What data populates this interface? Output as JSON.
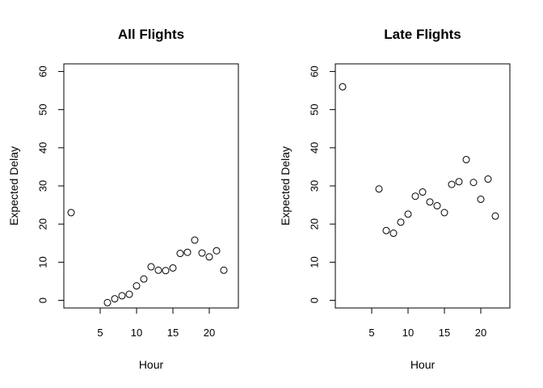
{
  "chart_data": [
    {
      "type": "scatter",
      "title": "All Flights",
      "xlabel": "Hour",
      "ylabel": "Expected Delay",
      "xlim": [
        0,
        24
      ],
      "ylim": [
        -2,
        62
      ],
      "x_ticks": [
        5,
        10,
        15,
        20
      ],
      "y_ticks": [
        0,
        10,
        20,
        30,
        40,
        50,
        60
      ],
      "grid": false,
      "points": [
        {
          "x": 1,
          "y": 23.0
        },
        {
          "x": 6,
          "y": -0.6
        },
        {
          "x": 7,
          "y": 0.4
        },
        {
          "x": 8,
          "y": 1.2
        },
        {
          "x": 9,
          "y": 1.6
        },
        {
          "x": 10,
          "y": 3.8
        },
        {
          "x": 11,
          "y": 5.6
        },
        {
          "x": 12,
          "y": 8.8
        },
        {
          "x": 13,
          "y": 7.9
        },
        {
          "x": 14,
          "y": 7.8
        },
        {
          "x": 15,
          "y": 8.5
        },
        {
          "x": 16,
          "y": 12.3
        },
        {
          "x": 17,
          "y": 12.6
        },
        {
          "x": 18,
          "y": 15.8
        },
        {
          "x": 19,
          "y": 12.4
        },
        {
          "x": 20,
          "y": 11.4
        },
        {
          "x": 21,
          "y": 13.0
        },
        {
          "x": 22,
          "y": 7.9
        }
      ]
    },
    {
      "type": "scatter",
      "title": "Late Flights",
      "xlabel": "Hour",
      "ylabel": "Expected Delay",
      "xlim": [
        0,
        24
      ],
      "ylim": [
        -2,
        62
      ],
      "x_ticks": [
        5,
        10,
        15,
        20
      ],
      "y_ticks": [
        0,
        10,
        20,
        30,
        40,
        50,
        60
      ],
      "grid": false,
      "points": [
        {
          "x": 1,
          "y": 56.0
        },
        {
          "x": 6,
          "y": 29.2
        },
        {
          "x": 7,
          "y": 18.3
        },
        {
          "x": 8,
          "y": 17.6
        },
        {
          "x": 9,
          "y": 20.5
        },
        {
          "x": 10,
          "y": 22.6
        },
        {
          "x": 11,
          "y": 27.3
        },
        {
          "x": 12,
          "y": 28.4
        },
        {
          "x": 13,
          "y": 25.8
        },
        {
          "x": 14,
          "y": 24.8
        },
        {
          "x": 15,
          "y": 23.0
        },
        {
          "x": 16,
          "y": 30.4
        },
        {
          "x": 17,
          "y": 31.1
        },
        {
          "x": 18,
          "y": 36.9
        },
        {
          "x": 19,
          "y": 30.9
        },
        {
          "x": 20,
          "y": 26.5
        },
        {
          "x": 21,
          "y": 31.8
        },
        {
          "x": 22,
          "y": 22.1
        }
      ]
    }
  ]
}
